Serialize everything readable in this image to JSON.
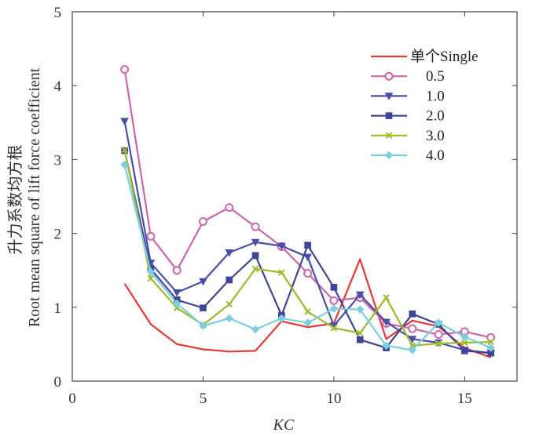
{
  "chart_data": {
    "type": "line",
    "title": "",
    "xlabel": "KC",
    "ylabel": "升力系数均方根 Root mean square of lift force coefficient",
    "ylabel_cn": "升力系数均方根",
    "ylabel_en": "Root mean square of lift force coefficient",
    "xlim": [
      0,
      17
    ],
    "ylim": [
      0,
      5
    ],
    "xticks": [
      0,
      5,
      10,
      15
    ],
    "yticks": [
      0,
      1,
      2,
      3,
      4,
      5
    ],
    "grid": false,
    "legend_position": "top-right",
    "x": [
      2,
      3,
      4,
      5,
      6,
      7,
      8,
      9,
      10,
      11,
      12,
      13,
      14,
      15,
      16
    ],
    "series": [
      {
        "name": "单个Single",
        "color": "#e53935",
        "marker": "none",
        "values": [
          1.32,
          0.77,
          0.5,
          0.43,
          0.4,
          0.41,
          0.81,
          0.73,
          0.78,
          1.65,
          0.57,
          0.82,
          0.74,
          0.45,
          0.32
        ]
      },
      {
        "name": "0.5",
        "color": "#cc66aa",
        "marker": "circle",
        "values": [
          4.22,
          1.96,
          1.5,
          2.16,
          2.35,
          2.09,
          1.82,
          1.46,
          1.09,
          1.13,
          0.78,
          0.71,
          0.63,
          0.67,
          0.59
        ]
      },
      {
        "name": "1.0",
        "color": "#4a4ea8",
        "marker": "triangle-down",
        "values": [
          3.52,
          1.6,
          1.2,
          1.35,
          1.74,
          1.88,
          1.83,
          1.68,
          0.75,
          1.17,
          0.8,
          0.57,
          0.52,
          0.42,
          0.38
        ]
      },
      {
        "name": "2.0",
        "color": "#3f4596",
        "marker": "square",
        "values": [
          3.12,
          1.52,
          1.1,
          0.99,
          1.37,
          1.7,
          0.89,
          1.84,
          1.27,
          0.56,
          0.45,
          0.91,
          0.77,
          0.41,
          0.38
        ]
      },
      {
        "name": "3.0",
        "color": "#9bbb2e",
        "marker": "x",
        "values": [
          3.13,
          1.39,
          0.99,
          0.76,
          1.04,
          1.52,
          1.47,
          0.94,
          0.72,
          0.65,
          1.13,
          0.48,
          0.51,
          0.52,
          0.53
        ]
      },
      {
        "name": "4.0",
        "color": "#7ccfe0",
        "marker": "diamond",
        "values": [
          2.93,
          1.48,
          1.05,
          0.75,
          0.85,
          0.7,
          0.85,
          0.79,
          0.98,
          0.97,
          0.48,
          0.42,
          0.79,
          0.6,
          0.45
        ]
      }
    ]
  }
}
